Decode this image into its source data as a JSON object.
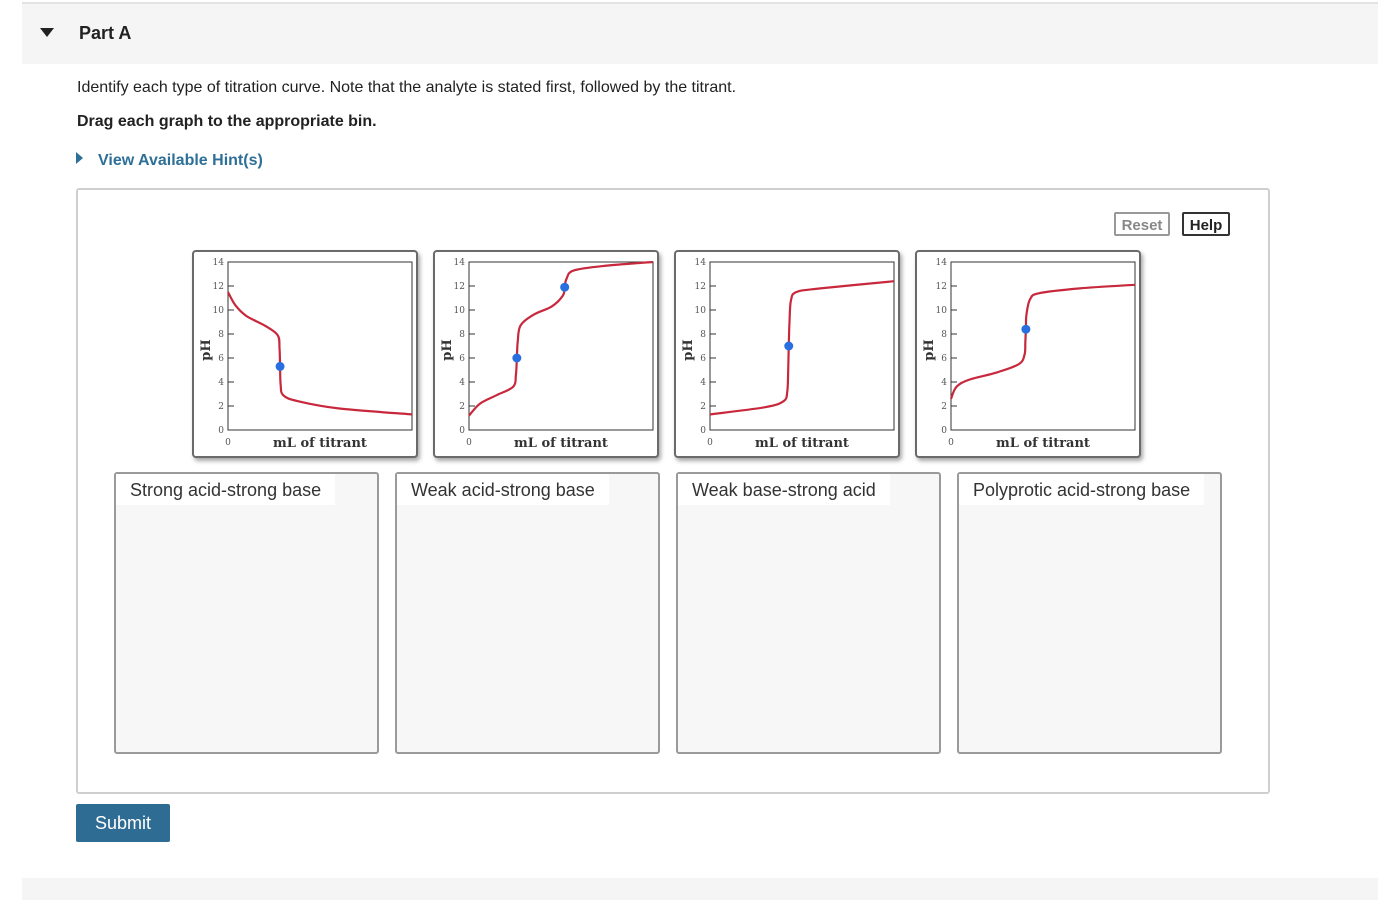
{
  "part": {
    "title": "Part A"
  },
  "question": {
    "instructions": "Identify each type of titration curve. Note that the analyte is stated first, followed by the titrant.",
    "drag_instruction": "Drag each graph to the appropriate bin."
  },
  "hint": {
    "label": "View Available Hint(s)"
  },
  "toolbar": {
    "reset_label": "Reset",
    "help_label": "Help"
  },
  "graph_common": {
    "y_ticks": [
      "0",
      "2",
      "4",
      "6",
      "8",
      "10",
      "12",
      "14"
    ],
    "x_tick": "0",
    "x_label": "mL of titrant",
    "y_label": "pH",
    "curve_color": "#c8283c",
    "point_color": "#2a6fe0"
  },
  "tiles": [
    {
      "curve": [
        [
          0,
          11.5
        ],
        [
          4,
          10.4
        ],
        [
          10,
          9.5
        ],
        [
          20,
          8.7
        ],
        [
          27,
          7.9
        ],
        [
          28,
          6.8
        ],
        [
          28.3,
          5.3
        ],
        [
          28.6,
          3.8
        ],
        [
          30,
          2.9
        ],
        [
          38,
          2.4
        ],
        [
          60,
          1.8
        ],
        [
          100,
          1.3
        ]
      ],
      "points": [
        [
          28.3,
          5.3
        ]
      ]
    },
    {
      "curve": [
        [
          0,
          1.2
        ],
        [
          6,
          2.2
        ],
        [
          15,
          2.9
        ],
        [
          24,
          3.6
        ],
        [
          25.5,
          4.6
        ],
        [
          26,
          6.0
        ],
        [
          26.5,
          7.4
        ],
        [
          28,
          8.7
        ],
        [
          35,
          9.6
        ],
        [
          45,
          10.3
        ],
        [
          51,
          11.2
        ],
        [
          52,
          11.9
        ],
        [
          53,
          12.6
        ],
        [
          57,
          13.3
        ],
        [
          75,
          13.7
        ],
        [
          100,
          14.0
        ]
      ],
      "points": [
        [
          26,
          6.0
        ],
        [
          52,
          11.9
        ]
      ]
    },
    {
      "curve": [
        [
          0,
          1.3
        ],
        [
          30,
          1.9
        ],
        [
          40,
          2.4
        ],
        [
          42,
          3.2
        ],
        [
          42.5,
          5.0
        ],
        [
          42.8,
          7.0
        ],
        [
          43.2,
          9.0
        ],
        [
          44,
          10.8
        ],
        [
          47,
          11.5
        ],
        [
          60,
          11.8
        ],
        [
          100,
          12.4
        ]
      ],
      "points": [
        [
          42.8,
          7.0
        ]
      ]
    },
    {
      "curve": [
        [
          0,
          2.6
        ],
        [
          3,
          3.6
        ],
        [
          10,
          4.2
        ],
        [
          25,
          4.8
        ],
        [
          37,
          5.5
        ],
        [
          40,
          6.3
        ],
        [
          40.4,
          7.3
        ],
        [
          40.7,
          8.4
        ],
        [
          41,
          9.6
        ],
        [
          43,
          10.9
        ],
        [
          48,
          11.4
        ],
        [
          70,
          11.8
        ],
        [
          100,
          12.1
        ]
      ],
      "points": [
        [
          40.7,
          8.4
        ]
      ]
    }
  ],
  "bins": [
    {
      "label": "Strong acid-strong base"
    },
    {
      "label": "Weak acid-strong base"
    },
    {
      "label": "Weak base-strong acid"
    },
    {
      "label": "Polyprotic acid-strong base"
    }
  ],
  "submit": {
    "label": "Submit"
  }
}
